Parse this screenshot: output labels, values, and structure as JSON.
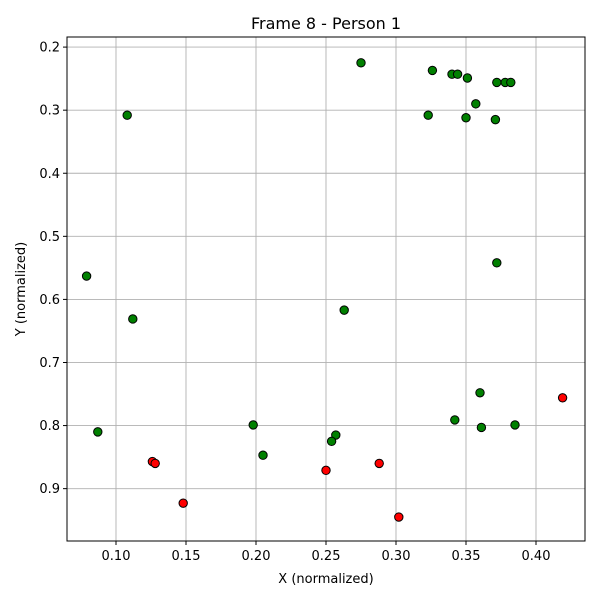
{
  "chart_data": {
    "type": "scatter",
    "title": "Frame 8 - Person 1",
    "xlabel": "X (normalized)",
    "ylabel": "Y (normalized)",
    "xlim": [
      0.065,
      0.435
    ],
    "ylim": [
      0.983,
      0.184
    ],
    "y_inverted": true,
    "grid": true,
    "x_ticks": [
      "0.10",
      "0.15",
      "0.20",
      "0.25",
      "0.30",
      "0.35",
      "0.40"
    ],
    "y_ticks": [
      "0.2",
      "0.3",
      "0.4",
      "0.5",
      "0.6",
      "0.7",
      "0.8",
      "0.9"
    ],
    "colors": {
      "green": "#008000",
      "red": "#ff0000"
    },
    "series": [
      {
        "color": "#008000",
        "points": [
          [
            0.275,
            0.225
          ],
          [
            0.326,
            0.237
          ],
          [
            0.34,
            0.243
          ],
          [
            0.344,
            0.243
          ],
          [
            0.351,
            0.249
          ],
          [
            0.372,
            0.256
          ],
          [
            0.378,
            0.256
          ],
          [
            0.382,
            0.256
          ],
          [
            0.357,
            0.29
          ],
          [
            0.108,
            0.308
          ],
          [
            0.323,
            0.308
          ],
          [
            0.35,
            0.312
          ],
          [
            0.371,
            0.315
          ],
          [
            0.372,
            0.542
          ],
          [
            0.079,
            0.563
          ],
          [
            0.263,
            0.617
          ],
          [
            0.112,
            0.631
          ],
          [
            0.36,
            0.748
          ],
          [
            0.342,
            0.791
          ],
          [
            0.385,
            0.799
          ],
          [
            0.361,
            0.803
          ],
          [
            0.198,
            0.799
          ],
          [
            0.087,
            0.81
          ],
          [
            0.257,
            0.815
          ],
          [
            0.254,
            0.825
          ],
          [
            0.205,
            0.847
          ]
        ]
      },
      {
        "color": "#ff0000",
        "points": [
          [
            0.419,
            0.756
          ],
          [
            0.126,
            0.857
          ],
          [
            0.128,
            0.86
          ],
          [
            0.288,
            0.86
          ],
          [
            0.25,
            0.871
          ],
          [
            0.148,
            0.923
          ],
          [
            0.302,
            0.945
          ]
        ]
      }
    ]
  }
}
